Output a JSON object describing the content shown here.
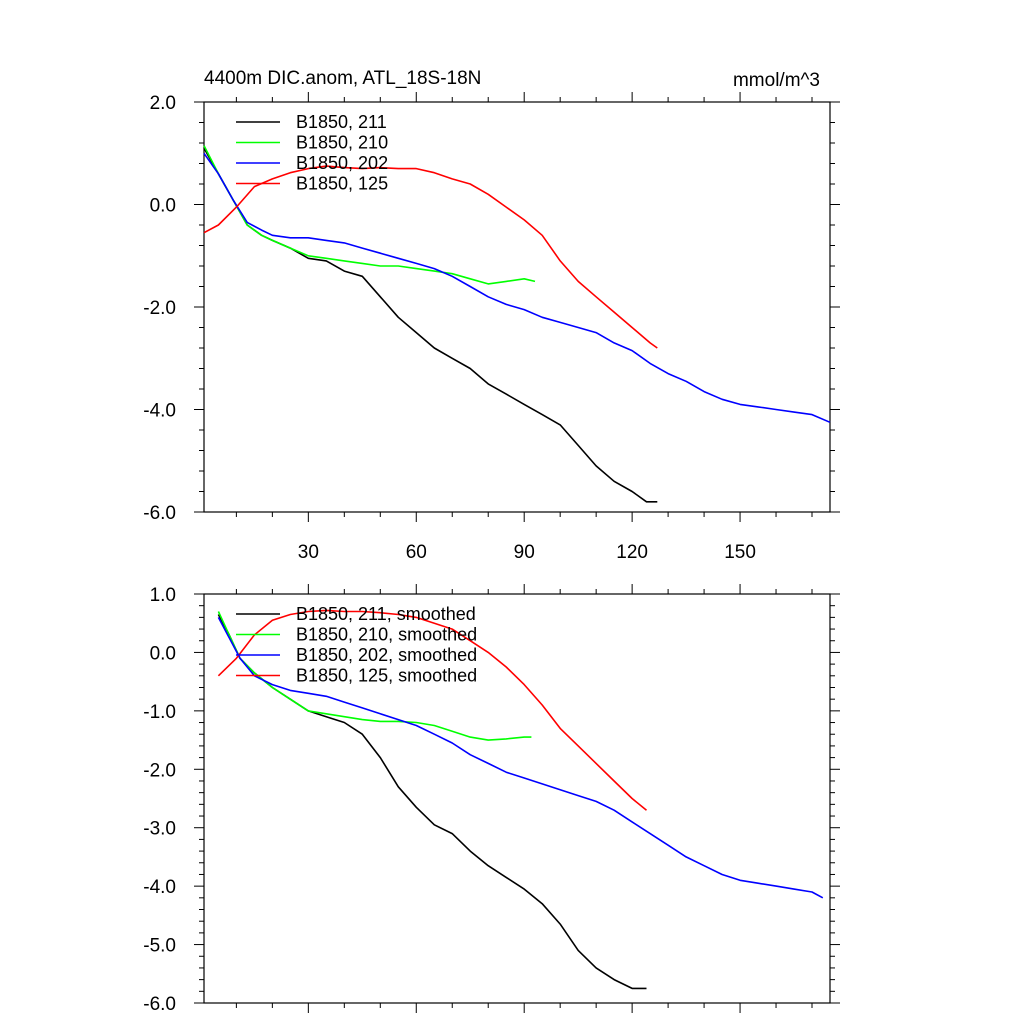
{
  "figure": {
    "title_left": "4400m DIC.anom, ATL_18S-18N",
    "title_right": "mmol/m^3"
  },
  "chart_data": [
    {
      "type": "line",
      "title": "4400m DIC.anom, ATL_18S-18N",
      "units": "mmol/m^3",
      "xlim": [
        1,
        175
      ],
      "ylim": [
        -6,
        2
      ],
      "x_ticks": [
        30,
        60,
        90,
        120,
        150
      ],
      "x_tick_labels": [
        "30",
        "60",
        "90",
        "120",
        "150"
      ],
      "y_ticks": [
        2,
        0,
        -2,
        -4,
        -6
      ],
      "y_tick_labels": [
        "2.0",
        "0.0",
        "-2.0",
        "-4.0",
        "-6.0"
      ],
      "legend_position": "top-left",
      "series": [
        {
          "name": "B1850, 211",
          "color": "#000000",
          "x": [
            1,
            5,
            9,
            13,
            17,
            20,
            25,
            30,
            35,
            40,
            45,
            50,
            55,
            60,
            65,
            70,
            75,
            80,
            85,
            90,
            95,
            100,
            105,
            110,
            115,
            120,
            124,
            127
          ],
          "y": [
            1.1,
            0.6,
            0.1,
            -0.4,
            -0.6,
            -0.7,
            -0.85,
            -1.05,
            -1.1,
            -1.3,
            -1.4,
            -1.8,
            -2.2,
            -2.5,
            -2.8,
            -3.0,
            -3.2,
            -3.5,
            -3.7,
            -3.9,
            -4.1,
            -4.3,
            -4.7,
            -5.1,
            -5.4,
            -5.6,
            -5.8,
            -5.8
          ]
        },
        {
          "name": "B1850, 210",
          "color": "#00ff00",
          "x": [
            1,
            5,
            9,
            13,
            17,
            20,
            25,
            30,
            35,
            40,
            45,
            50,
            55,
            60,
            65,
            70,
            75,
            80,
            85,
            90,
            93
          ],
          "y": [
            1.15,
            0.6,
            0.1,
            -0.4,
            -0.6,
            -0.7,
            -0.85,
            -1.0,
            -1.05,
            -1.1,
            -1.15,
            -1.2,
            -1.2,
            -1.25,
            -1.3,
            -1.35,
            -1.45,
            -1.55,
            -1.5,
            -1.45,
            -1.5
          ]
        },
        {
          "name": "B1850, 202",
          "color": "#0000ff",
          "x": [
            1,
            5,
            9,
            13,
            17,
            20,
            25,
            30,
            35,
            40,
            45,
            50,
            55,
            60,
            65,
            70,
            75,
            80,
            85,
            90,
            95,
            100,
            105,
            110,
            115,
            120,
            125,
            130,
            135,
            140,
            145,
            150,
            155,
            160,
            165,
            170,
            175
          ],
          "y": [
            1.0,
            0.6,
            0.1,
            -0.35,
            -0.5,
            -0.6,
            -0.65,
            -0.65,
            -0.7,
            -0.75,
            -0.85,
            -0.95,
            -1.05,
            -1.15,
            -1.25,
            -1.4,
            -1.6,
            -1.8,
            -1.95,
            -2.05,
            -2.2,
            -2.3,
            -2.4,
            -2.5,
            -2.7,
            -2.85,
            -3.1,
            -3.3,
            -3.45,
            -3.65,
            -3.8,
            -3.9,
            -3.95,
            -4.0,
            -4.05,
            -4.1,
            -4.25
          ]
        },
        {
          "name": "B1850, 125",
          "color": "#ff0000",
          "x": [
            1,
            5,
            10,
            15,
            20,
            25,
            30,
            35,
            40,
            45,
            50,
            55,
            60,
            65,
            70,
            75,
            80,
            85,
            90,
            95,
            100,
            105,
            110,
            115,
            120,
            125,
            127
          ],
          "y": [
            -0.55,
            -0.4,
            -0.05,
            0.35,
            0.5,
            0.62,
            0.7,
            0.75,
            0.72,
            0.7,
            0.72,
            0.7,
            0.7,
            0.62,
            0.5,
            0.4,
            0.2,
            -0.05,
            -0.3,
            -0.6,
            -1.1,
            -1.5,
            -1.8,
            -2.1,
            -2.4,
            -2.7,
            -2.8
          ]
        }
      ]
    },
    {
      "type": "line",
      "xlim": [
        1,
        175
      ],
      "ylim": [
        -6,
        1
      ],
      "x_ticks": [
        30,
        60,
        90,
        120,
        150
      ],
      "x_tick_labels": [],
      "y_ticks": [
        1,
        0,
        -1,
        -2,
        -3,
        -4,
        -5,
        -6
      ],
      "y_tick_labels": [
        "1.0",
        "0.0",
        "-1.0",
        "-2.0",
        "-3.0",
        "-4.0",
        "-5.0",
        "-6.0"
      ],
      "legend_position": "top-left",
      "series": [
        {
          "name": "B1850, 211, smoothed",
          "color": "#000000",
          "x": [
            5,
            8,
            11,
            15,
            20,
            25,
            30,
            35,
            40,
            45,
            50,
            55,
            60,
            65,
            70,
            75,
            80,
            85,
            90,
            95,
            100,
            105,
            110,
            115,
            120,
            124
          ],
          "y": [
            0.65,
            0.3,
            -0.1,
            -0.35,
            -0.6,
            -0.8,
            -1.0,
            -1.1,
            -1.2,
            -1.4,
            -1.8,
            -2.3,
            -2.65,
            -2.95,
            -3.1,
            -3.4,
            -3.65,
            -3.85,
            -4.05,
            -4.3,
            -4.65,
            -5.1,
            -5.4,
            -5.6,
            -5.75,
            -5.75
          ]
        },
        {
          "name": "B1850, 210, smoothed",
          "color": "#00ff00",
          "x": [
            5,
            8,
            11,
            15,
            20,
            25,
            30,
            35,
            40,
            45,
            50,
            55,
            60,
            65,
            70,
            75,
            80,
            85,
            90,
            92
          ],
          "y": [
            0.7,
            0.3,
            -0.1,
            -0.35,
            -0.6,
            -0.8,
            -1.0,
            -1.05,
            -1.1,
            -1.15,
            -1.18,
            -1.18,
            -1.2,
            -1.25,
            -1.35,
            -1.45,
            -1.5,
            -1.48,
            -1.45,
            -1.45
          ]
        },
        {
          "name": "B1850, 202, smoothed",
          "color": "#0000ff",
          "x": [
            5,
            8,
            11,
            15,
            20,
            25,
            30,
            35,
            40,
            45,
            50,
            55,
            60,
            65,
            70,
            75,
            80,
            85,
            90,
            95,
            100,
            105,
            110,
            115,
            120,
            125,
            130,
            135,
            140,
            145,
            150,
            155,
            160,
            165,
            170,
            173
          ],
          "y": [
            0.6,
            0.25,
            -0.1,
            -0.4,
            -0.55,
            -0.65,
            -0.7,
            -0.75,
            -0.85,
            -0.95,
            -1.05,
            -1.15,
            -1.25,
            -1.4,
            -1.55,
            -1.75,
            -1.9,
            -2.05,
            -2.15,
            -2.25,
            -2.35,
            -2.45,
            -2.55,
            -2.7,
            -2.9,
            -3.1,
            -3.3,
            -3.5,
            -3.65,
            -3.8,
            -3.9,
            -3.95,
            -4.0,
            -4.05,
            -4.1,
            -4.2
          ]
        },
        {
          "name": "B1850, 125, smoothed",
          "color": "#ff0000",
          "x": [
            5,
            10,
            15,
            20,
            25,
            30,
            35,
            40,
            45,
            50,
            55,
            60,
            65,
            70,
            75,
            80,
            85,
            90,
            95,
            100,
            105,
            110,
            115,
            120,
            124
          ],
          "y": [
            -0.4,
            -0.1,
            0.3,
            0.55,
            0.65,
            0.7,
            0.72,
            0.7,
            0.7,
            0.68,
            0.65,
            0.6,
            0.5,
            0.4,
            0.2,
            0.0,
            -0.25,
            -0.55,
            -0.9,
            -1.3,
            -1.6,
            -1.9,
            -2.2,
            -2.5,
            -2.7
          ]
        }
      ]
    }
  ]
}
